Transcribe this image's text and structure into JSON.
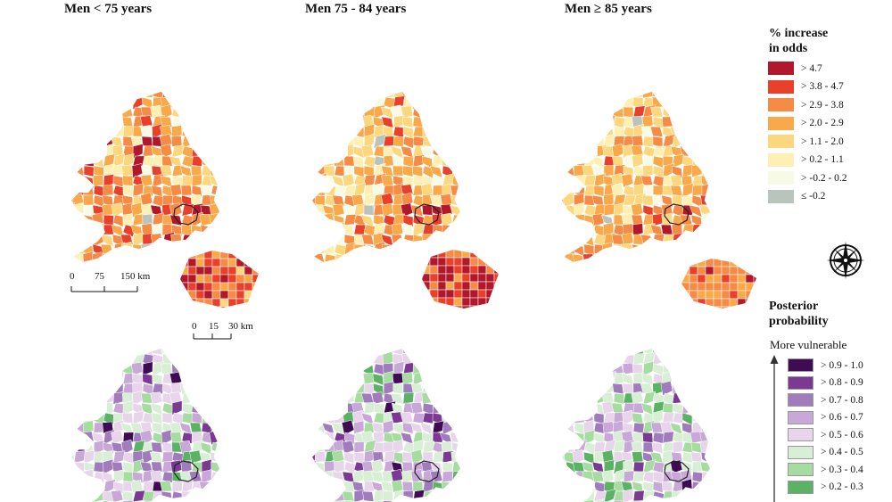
{
  "panels": [
    {
      "title": "Men < 75 years"
    },
    {
      "title": "Men 75 - 84 years"
    },
    {
      "title": "Men ≥ 85 years"
    }
  ],
  "odds_legend": {
    "title_line1": "% increase",
    "title_line2": "in odds",
    "items": [
      {
        "label": ">  4.7",
        "color": "#b2182b"
      },
      {
        "label": ">  3.8 -  4.7",
        "color": "#e8402a"
      },
      {
        "label": ">  2.9 -  3.8",
        "color": "#f68b45"
      },
      {
        "label": ">  2.0 -  2.9",
        "color": "#f9a84a"
      },
      {
        "label": ">  1.1 -  2.0",
        "color": "#fdd77d"
      },
      {
        "label": ">  0.2 -  1.1",
        "color": "#fef0b5"
      },
      {
        "label": "> -0.2 -  0.2",
        "color": "#f7fbe6"
      },
      {
        "label": "≤ -0.2",
        "color": "#b9c4bd"
      }
    ]
  },
  "prob_legend": {
    "title_line1": "Posterior",
    "title_line2": "probability",
    "arrow_label": "More vulnerable",
    "items": [
      {
        "label": "> 0.9 - 1.0",
        "color": "#3f0b52"
      },
      {
        "label": "> 0.8 - 0.9",
        "color": "#7b3994"
      },
      {
        "label": "> 0.7 - 0.8",
        "color": "#a07cbd"
      },
      {
        "label": "> 0.6 - 0.7",
        "color": "#c7a8d6"
      },
      {
        "label": "> 0.5 - 0.6",
        "color": "#e8d5ec"
      },
      {
        "label": "> 0.4 - 0.5",
        "color": "#d8efd5"
      },
      {
        "label": "> 0.3 - 0.4",
        "color": "#a7dca1"
      },
      {
        "label": "> 0.2 - 0.3",
        "color": "#5bb265"
      }
    ]
  },
  "scalebar_main": {
    "labels": [
      "0",
      "75",
      "150 km"
    ]
  },
  "scalebar_inset": {
    "labels": [
      "0",
      "15",
      "30 km"
    ]
  },
  "icons": {
    "compass": "compass-rose-icon",
    "arrow": "arrow-up-icon"
  },
  "colors": {
    "london_outline": "#222222",
    "region_border": "#ffffff"
  }
}
